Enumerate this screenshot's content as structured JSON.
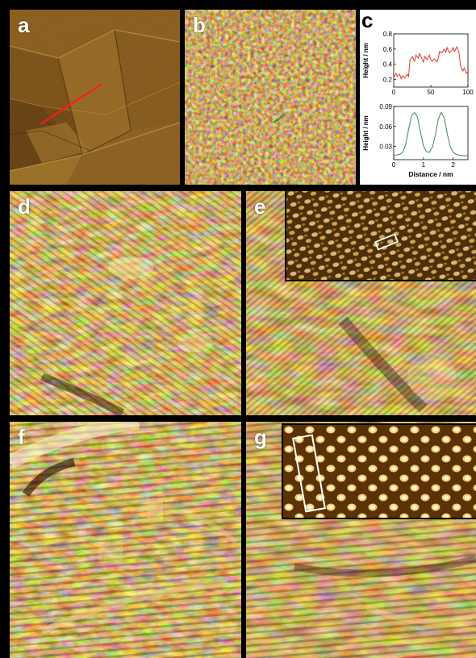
{
  "panels": {
    "a": {
      "label": "a"
    },
    "b": {
      "label": "b"
    },
    "c": {
      "label": "c"
    },
    "d": {
      "label": "d"
    },
    "e": {
      "label": "e"
    },
    "f": {
      "label": "f"
    },
    "g": {
      "label": "g"
    }
  },
  "colors": {
    "profile_top": "#e8332b",
    "profile_bottom": "#3d8a5a",
    "line_scan": "#ff1a1a"
  },
  "chart_data": [
    {
      "type": "line",
      "xlabel": "",
      "ylabel": "Height / nm",
      "xlim": [
        0,
        100
      ],
      "ylim": [
        0.1,
        0.8
      ],
      "xticks": [
        0,
        50,
        100
      ],
      "yticks": [
        0.2,
        0.4,
        0.6,
        0.8
      ],
      "x": [
        0,
        3,
        5,
        8,
        10,
        12,
        15,
        18,
        20,
        22,
        25,
        28,
        30,
        33,
        35,
        38,
        40,
        42,
        45,
        48,
        50,
        52,
        55,
        58,
        60,
        62,
        65,
        68,
        70,
        72,
        75,
        78,
        80,
        82,
        85,
        88,
        90,
        93,
        95,
        98,
        100
      ],
      "values": [
        0.22,
        0.28,
        0.24,
        0.27,
        0.21,
        0.25,
        0.22,
        0.27,
        0.24,
        0.45,
        0.5,
        0.44,
        0.52,
        0.48,
        0.54,
        0.47,
        0.43,
        0.5,
        0.46,
        0.52,
        0.46,
        0.44,
        0.47,
        0.43,
        0.48,
        0.57,
        0.55,
        0.6,
        0.56,
        0.62,
        0.55,
        0.58,
        0.62,
        0.57,
        0.63,
        0.55,
        0.38,
        0.31,
        0.35,
        0.28,
        0.3
      ]
    },
    {
      "type": "line",
      "xlabel": "Distance / nm",
      "ylabel": "Height / nm",
      "xlim": [
        0,
        2.5
      ],
      "ylim": [
        0.01,
        0.09
      ],
      "xticks": [
        0,
        1,
        2
      ],
      "yticks": [
        0.03,
        0.06,
        0.09
      ],
      "x": [
        0,
        0.1,
        0.2,
        0.3,
        0.4,
        0.5,
        0.6,
        0.7,
        0.8,
        0.9,
        1.0,
        1.1,
        1.2,
        1.3,
        1.4,
        1.5,
        1.6,
        1.7,
        1.8,
        1.9,
        2.0,
        2.1,
        2.2,
        2.3,
        2.4,
        2.5
      ],
      "values": [
        0.016,
        0.017,
        0.018,
        0.021,
        0.032,
        0.055,
        0.076,
        0.081,
        0.074,
        0.052,
        0.031,
        0.022,
        0.021,
        0.028,
        0.046,
        0.071,
        0.081,
        0.073,
        0.05,
        0.03,
        0.021,
        0.018,
        0.017,
        0.016,
        0.016,
        0.016
      ]
    }
  ]
}
